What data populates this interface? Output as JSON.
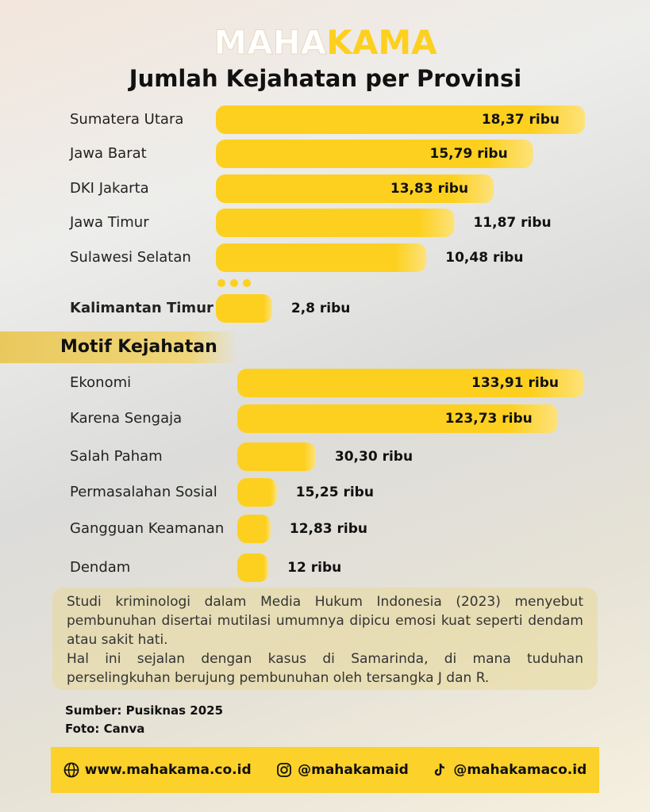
{
  "brand": {
    "light": "MAHA",
    "bold": "KAMA"
  },
  "chart_data": [
    {
      "type": "bar",
      "orientation": "horizontal",
      "title": "Jumlah Kejahatan per Provinsi",
      "categories": [
        "Sumatera Utara",
        "Jawa Barat",
        "DKI Jakarta",
        "Jawa Timur",
        "Sulawesi Selatan",
        "Kalimantan Timur"
      ],
      "values": [
        18.37,
        15.79,
        13.83,
        11.87,
        10.48,
        2.8
      ],
      "value_labels": [
        "18,37 ribu",
        "15,79 ribu",
        "13,83 ribu",
        "11,87 ribu",
        "10,48 ribu",
        "2,8 ribu"
      ],
      "color": "#fdd01f"
    },
    {
      "type": "bar",
      "orientation": "horizontal",
      "title": "Motif Kejahatan",
      "categories": [
        "Ekonomi",
        "Karena Sengaja",
        "Salah Paham",
        "Permasalahan Sosial",
        "Gangguan Keamanan",
        "Dendam"
      ],
      "values": [
        133.91,
        123.73,
        30.3,
        15.25,
        12.83,
        12
      ],
      "value_labels": [
        "133,91 ribu",
        "123,73 ribu",
        "30,30 ribu",
        "15,25 ribu",
        "12,83 ribu",
        "12 ribu"
      ],
      "color": "#fdd01f"
    }
  ],
  "note": [
    "Studi kriminologi dalam Media Hukum Indonesia (2023) menyebut pembunuhan disertai mutilasi umumnya dipicu emosi kuat seperti dendam atau sakit hati.",
    "Hal ini sejalan dengan kasus di Samarinda, di mana tuduhan perselingkuhan berujung pembunuhan oleh tersangka J dan R."
  ],
  "sources": [
    "Sumber: Pusiknas 2025",
    "Foto: Canva"
  ],
  "footer": [
    "www.mahakama.co.id",
    "@mahakamaid",
    "@mahakamaco.id"
  ]
}
